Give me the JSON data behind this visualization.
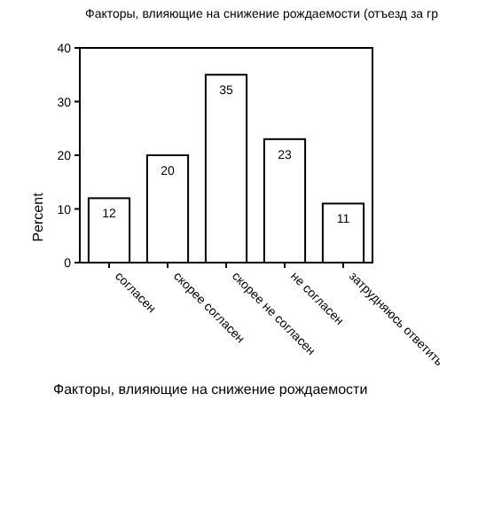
{
  "chart_data": {
    "type": "bar",
    "title": "Факторы, влияющие на снижение рождаемости (отъезд за гр",
    "xlabel": "Факторы, влияющие на снижение рождаемости",
    "ylabel": "Percent",
    "categories": [
      "согласен",
      "скорее согласен",
      "скорее не согласен",
      "не согласен",
      "затрудняюсь ответить"
    ],
    "values": [
      12,
      20,
      35,
      23,
      11
    ],
    "color": "#ffffff",
    "data_labels": true,
    "ylim": [
      0,
      40
    ],
    "yticks": [
      0,
      10,
      20,
      30,
      40
    ],
    "grid": false
  }
}
